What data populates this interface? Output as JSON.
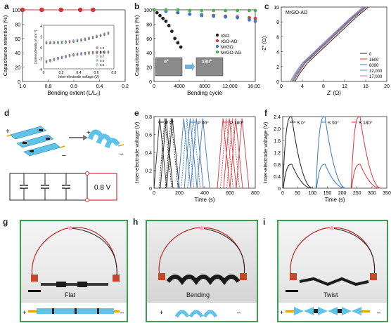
{
  "panels": {
    "a": {
      "label": "a",
      "ylabel": "Capacitance retention (%)",
      "xlabel": "Bending extent (L/L₀)",
      "yticks": [
        "100",
        "80",
        "60",
        "40",
        "20",
        "0"
      ],
      "xticks": [
        "1.0",
        "0.8",
        "0.6",
        "0.4",
        "0.2"
      ],
      "inset": {
        "xlabel": "Inter-electrode voltage (V)",
        "ylabel": "Current density (A cm⁻²)",
        "xticks": [
          "0",
          "0.2",
          "0.4",
          "0.6",
          "0.8"
        ],
        "yticks": [
          "4",
          "2",
          "0",
          "-2",
          "-4"
        ],
        "legend": [
          "1.0",
          "0.8",
          "0.7",
          "0.6",
          "0.5"
        ]
      }
    },
    "b": {
      "label": "b",
      "ylabel": "Capacitance retention (%)",
      "xlabel": "Bending cycle",
      "yticks": [
        "100",
        "80",
        "60",
        "40",
        "20",
        "0"
      ],
      "xticks": [
        "0",
        "4000",
        "8000",
        "12,000",
        "16,000"
      ],
      "legend": [
        "rGO",
        "rGO-AD",
        "MrGO",
        "MrGO-AD"
      ],
      "angle_left": "0°",
      "angle_right": "180°"
    },
    "c": {
      "label": "c",
      "title": "MrGO-AD",
      "ylabel": "-Z″ (Ω)",
      "xlabel": "Z′ (Ω)",
      "yticks": [
        "10",
        "8",
        "6",
        "4",
        "2",
        "0"
      ],
      "xticks": [
        "0",
        "4",
        "8",
        "12",
        "16",
        "20"
      ],
      "legend": [
        "0",
        "1600",
        "6000",
        "12,000",
        "17,000"
      ]
    },
    "d": {
      "label": "d",
      "plus": "+",
      "minus": "–",
      "voltage": "0.8 V"
    },
    "e": {
      "label": "e",
      "ylabel": "Inter-electrode voltage (V)",
      "xlabel": "Time (s)",
      "yticks": [
        "0.8",
        "0.6",
        "0.4",
        "0.2",
        "0"
      ],
      "xticks": [
        "0",
        "200",
        "400",
        "600",
        "800"
      ],
      "legend": [
        "P 0°",
        "P 90°",
        "P 180°"
      ]
    },
    "f": {
      "label": "f",
      "ylabel": "Inter-electrode voltage (V)",
      "xlabel": "Time (s)",
      "yticks": [
        "2.4",
        "2.0",
        "1.6",
        "1.2",
        "0.8",
        "0.4",
        "0"
      ],
      "xticks": [
        "0",
        "50",
        "100",
        "150",
        "200",
        "250",
        "300",
        "350"
      ],
      "legend": [
        "S 0°",
        "S 90°",
        "S 180°"
      ]
    },
    "g": {
      "label": "g",
      "caption": "Flat"
    },
    "h": {
      "label": "h",
      "caption": "Bending"
    },
    "i": {
      "label": "i",
      "caption": "Twist"
    },
    "signs": {
      "plus": "+",
      "minus": "–"
    }
  },
  "colors": {
    "red": "#e0343a",
    "green": "#4cae4c",
    "blue": "#3a78c8",
    "frame": "#3aa14a",
    "device": "#5fc3e8"
  },
  "chart_data": [
    {
      "type": "scatter",
      "panel": "a",
      "x": [
        1.0,
        0.85,
        0.7,
        0.55,
        0.45
      ],
      "values": [
        100,
        100,
        100,
        100,
        100
      ],
      "ylim": [
        0,
        100
      ],
      "xlim": [
        1.0,
        0.2
      ]
    },
    {
      "type": "scatter",
      "panel": "b",
      "xlim": [
        0,
        17000
      ],
      "ylim": [
        0,
        100
      ],
      "series": [
        {
          "name": "rGO",
          "x": [
            0,
            500,
            1000,
            1500,
            2000,
            2500,
            3000,
            3500,
            4000,
            4500
          ],
          "values": [
            100,
            96,
            92,
            88,
            84,
            78,
            70,
            60,
            54,
            48
          ]
        },
        {
          "name": "rGO-AD",
          "x": [
            0,
            2000,
            4000,
            6000,
            8000,
            10000,
            12000,
            14000,
            16000,
            17000
          ],
          "values": [
            100,
            98,
            96,
            94,
            93,
            92,
            91,
            90,
            89,
            88
          ]
        },
        {
          "name": "MrGO",
          "x": [
            0,
            2000,
            4000,
            6000,
            8000,
            10000,
            12000,
            14000,
            16000,
            17000
          ],
          "values": [
            100,
            98,
            96,
            94,
            92,
            91,
            90,
            89,
            86,
            84
          ]
        },
        {
          "name": "MrGO-AD",
          "x": [
            0,
            2000,
            4000,
            6000,
            8000,
            10000,
            12000,
            14000,
            16000,
            17000
          ],
          "values": [
            100,
            100,
            100,
            99,
            99,
            99,
            99,
            99,
            99,
            99
          ]
        }
      ]
    },
    {
      "type": "line",
      "panel": "c",
      "xlim": [
        0,
        20
      ],
      "ylim": [
        0,
        10
      ],
      "series": [
        {
          "name": "0",
          "x": [
            2.6,
            3.4,
            5,
            8,
            11,
            14,
            16.5
          ],
          "values": [
            0,
            1,
            2.5,
            4.5,
            6.5,
            8.5,
            10
          ]
        },
        {
          "name": "1600",
          "x": [
            2.3,
            3.1,
            4.6,
            7.6,
            10.6,
            13.6,
            16.1
          ],
          "values": [
            0,
            1,
            2.5,
            4.5,
            6.5,
            8.5,
            10
          ]
        },
        {
          "name": "6000",
          "x": [
            2.1,
            2.9,
            4.4,
            7.4,
            10.4,
            13.4,
            15.9
          ],
          "values": [
            0,
            1,
            2.5,
            4.5,
            6.5,
            8.5,
            10
          ]
        },
        {
          "name": "12,000",
          "x": [
            1.9,
            2.7,
            4.2,
            7.2,
            10.2,
            13.2,
            15.7
          ],
          "values": [
            0,
            1,
            2.5,
            4.5,
            6.5,
            8.5,
            10
          ]
        },
        {
          "name": "17,000",
          "x": [
            1.7,
            2.5,
            4,
            7,
            10,
            13,
            15.5
          ],
          "values": [
            0,
            1,
            2.5,
            4.5,
            6.5,
            8.5,
            10
          ]
        }
      ]
    },
    {
      "type": "line",
      "panel": "e",
      "xlim": [
        0,
        800
      ],
      "ylim": [
        0,
        0.8
      ]
    },
    {
      "type": "line",
      "panel": "f",
      "xlim": [
        0,
        350
      ],
      "ylim": [
        0,
        2.4
      ]
    }
  ]
}
